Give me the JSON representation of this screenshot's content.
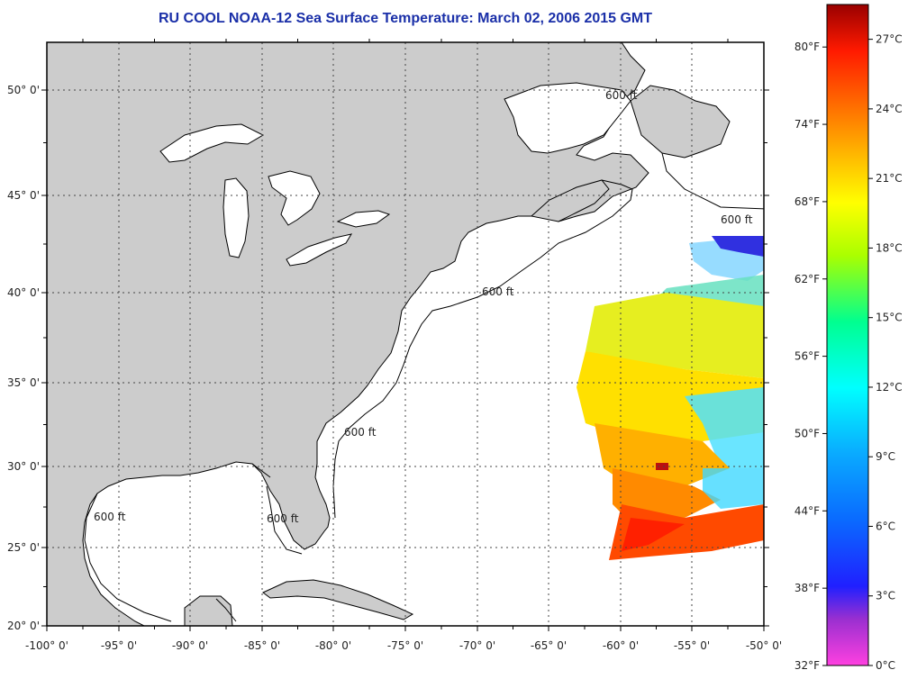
{
  "title": "RU COOL  NOAA-12  Sea Surface Temperature:  March 02, 2006 2015 GMT",
  "map": {
    "projection": "mercator",
    "lon_range": [
      -100,
      -50
    ],
    "lat_range": [
      20,
      52.5
    ],
    "land_color": "#cccccc",
    "ocean_color": "#ffffff",
    "contour_label": "600 ft",
    "lat_ticks": [
      "20° 0'",
      "25° 0'",
      "30° 0'",
      "35° 0'",
      "40° 0'",
      "45° 0'",
      "50° 0'"
    ],
    "lon_ticks": [
      "-100° 0'",
      "-95° 0'",
      "-90° 0'",
      "-85° 0'",
      "-80° 0'",
      "-75° 0'",
      "-70° 0'",
      "-65° 0'",
      "-60° 0'",
      "-55° 0'",
      "-50° 0'"
    ]
  },
  "colorbar": {
    "fahrenheit_labels": [
      "80°F",
      "74°F",
      "68°F",
      "62°F",
      "56°F",
      "50°F",
      "44°F",
      "38°F",
      "32°F"
    ],
    "celsius_labels": [
      "27°C",
      "24°C",
      "21°C",
      "18°C",
      "15°C",
      "12°C",
      "9°C",
      "6°C",
      "3°C",
      "0°C"
    ],
    "range_c": [
      0,
      28.5
    ],
    "colors": [
      "#ff40e0",
      "#9a2fd0",
      "#0a14ff",
      "#0a9aff",
      "#00ffff",
      "#00ff70",
      "#ddff00",
      "#ffd000",
      "#ff7800",
      "#ff1a00",
      "#aa0000"
    ]
  }
}
